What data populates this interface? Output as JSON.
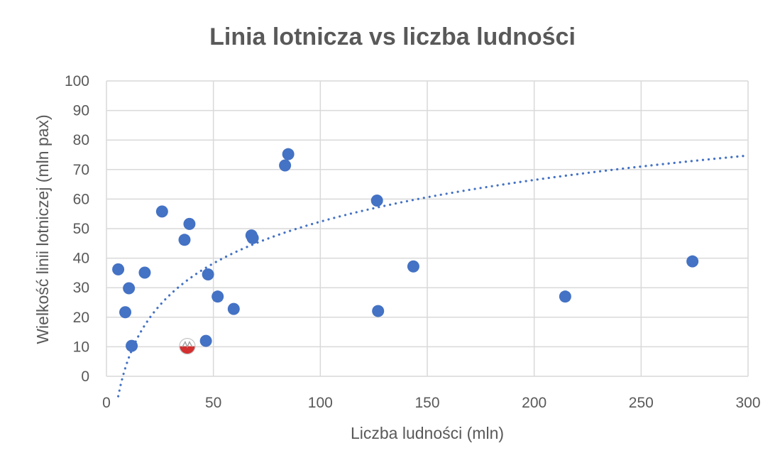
{
  "chart_data": {
    "type": "scatter",
    "title": "Linia lotnicza vs liczba ludności",
    "xlabel": "Liczba ludności (mln)",
    "ylabel": "Wielkość linii lotniczej (mln pax)",
    "xlim": [
      0,
      300
    ],
    "ylim": [
      0,
      100
    ],
    "xticks": [
      0,
      50,
      100,
      150,
      200,
      250,
      300
    ],
    "yticks": [
      0,
      10,
      20,
      30,
      40,
      50,
      60,
      70,
      80,
      90,
      100
    ],
    "grid": true,
    "legend": "none",
    "colors": {
      "points": "#4472c4",
      "trendline": "#4472c4",
      "highlight_red": "#d32f2f",
      "highlight_white": "#ffffff",
      "grid": "#d9d9d9",
      "text": "#595959"
    },
    "points": [
      {
        "x": 5.5,
        "y": 36.2
      },
      {
        "x": 8.8,
        "y": 21.7
      },
      {
        "x": 10.5,
        "y": 29.8
      },
      {
        "x": 11.8,
        "y": 10.3
      },
      {
        "x": 17.9,
        "y": 35.1
      },
      {
        "x": 26.0,
        "y": 55.8
      },
      {
        "x": 36.5,
        "y": 46.2
      },
      {
        "x": 38.8,
        "y": 51.6
      },
      {
        "x": 46.5,
        "y": 12.0
      },
      {
        "x": 47.5,
        "y": 34.5
      },
      {
        "x": 52.0,
        "y": 27.0
      },
      {
        "x": 59.5,
        "y": 22.8
      },
      {
        "x": 67.8,
        "y": 47.7
      },
      {
        "x": 68.4,
        "y": 46.8
      },
      {
        "x": 83.5,
        "y": 71.4
      },
      {
        "x": 85.0,
        "y": 75.2
      },
      {
        "x": 126.5,
        "y": 59.5
      },
      {
        "x": 127.0,
        "y": 22.1
      },
      {
        "x": 143.5,
        "y": 37.2
      },
      {
        "x": 214.5,
        "y": 27.0
      },
      {
        "x": 274.0,
        "y": 38.9
      }
    ],
    "highlight_point": {
      "x": 37.8,
      "y": 10.2,
      "marker": "logo"
    },
    "trendline": {
      "type": "logarithmic",
      "style": "dotted",
      "a": 20.38,
      "b": -41.5,
      "x_range": [
        5.5,
        300
      ]
    }
  }
}
